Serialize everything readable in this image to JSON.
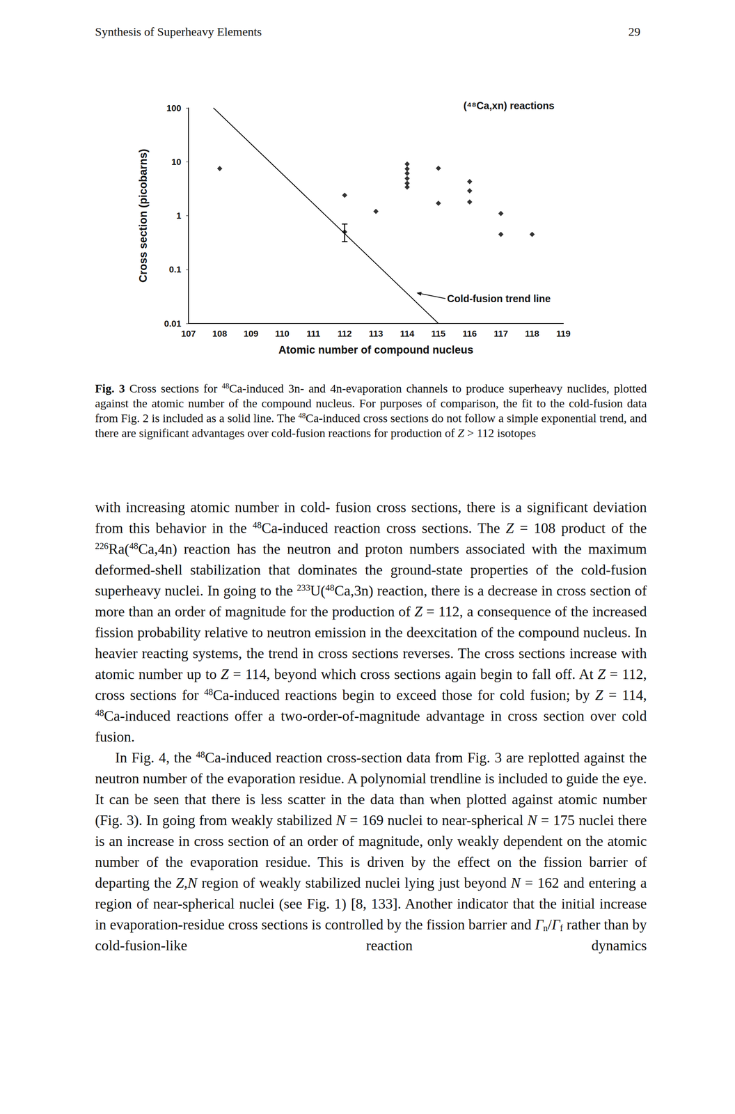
{
  "header": {
    "title": "Synthesis of Superheavy Elements",
    "page": 29
  },
  "chart_data": {
    "type": "scatter",
    "xlabel": "Atomic number of compound nucleus",
    "ylabel": "Cross section (picobarns)",
    "xlim": [
      107,
      119
    ],
    "xticks": [
      107,
      108,
      109,
      110,
      111,
      112,
      113,
      114,
      115,
      116,
      117,
      118,
      119
    ],
    "ylim": [
      0.01,
      100
    ],
    "yticks": [
      0.01,
      0.1,
      1,
      10,
      100
    ],
    "log": "y",
    "grid": false,
    "series": [
      {
        "name": "(⁴⁸Ca,xn) reactions",
        "type": "scatter",
        "marker": "diamond",
        "color": "#000000",
        "x": [
          108,
          112,
          112,
          113,
          114,
          114,
          114,
          114,
          114,
          114,
          115,
          115,
          116,
          116,
          116,
          117,
          117,
          118
        ],
        "values": [
          7.5,
          2.4,
          0.5,
          1.2,
          9.1,
          7.4,
          6.1,
          4.9,
          4.0,
          3.4,
          7.6,
          1.7,
          4.3,
          2.9,
          1.8,
          1.1,
          0.45,
          0.45
        ],
        "error_bars": [
          null,
          null,
          [
            0.33,
            0.7
          ],
          null,
          null,
          null,
          null,
          null,
          null,
          null,
          null,
          null,
          null,
          null,
          null,
          null,
          null,
          null
        ]
      },
      {
        "name": "Cold-fusion trend line",
        "type": "line",
        "color": "#000000",
        "line_style": "solid",
        "x": [
          107.8,
          115
        ],
        "values": [
          100,
          0.01
        ]
      }
    ]
  },
  "caption": [
    {
      "b": "Fig. 3"
    },
    " Cross sections for ",
    {
      "sup": "48"
    },
    "Ca-induced 3n- and 4n-evaporation channels to produce superheavy nuclides, plotted against the atomic number of the compound nucleus. For purposes of comparison, the fit to the cold-fusion data from Fig. 2 is included as a solid line. The ",
    {
      "sup": "48"
    },
    "Ca-induced cross sections do not follow a simple exponential trend, and there are significant advantages over cold-fusion reactions for production of ",
    {
      "i": "Z"
    },
    " > 112 isotopes"
  ],
  "paragraphs": [
    [
      "with increasing atomic number in cold- fusion cross sections, there is a significant deviation from this behavior in the ",
      {
        "sup": "48"
      },
      "Ca-induced reaction cross sections. The ",
      {
        "i": "Z"
      },
      " = 108 product of the ",
      {
        "sup": "226"
      },
      "Ra(",
      {
        "sup": "48"
      },
      "Ca,4n) reaction has the neutron and proton numbers associated with the maximum deformed-shell stabilization that dominates the ground-state properties of the cold-fusion superheavy nuclei. In going to the ",
      {
        "sup": "233"
      },
      "U(",
      {
        "sup": "48"
      },
      "Ca,3n) reaction, there is a decrease in cross section of more than an order of magnitude for the production of ",
      {
        "i": "Z"
      },
      " = 112, a consequence of the increased fission probability relative to neutron emission in the deexcitation of the compound nucleus. In heavier reacting systems, the trend in cross sections reverses. The cross sections increase with atomic number up to ",
      {
        "i": "Z"
      },
      " = 114, beyond which cross sections again begin to fall off. At ",
      {
        "i": "Z"
      },
      " = 112, cross sections for ",
      {
        "sup": "48"
      },
      "Ca-induced reactions begin to exceed those for cold fusion; by ",
      {
        "i": "Z"
      },
      " = 114, ",
      {
        "sup": "48"
      },
      "Ca-induced reactions offer a two-order-of-magnitude advantage in cross section over cold fusion."
    ],
    [
      "In Fig. 4, the ",
      {
        "sup": "48"
      },
      "Ca-induced reaction cross-section data from Fig. 3 are replotted against the neutron number of the evaporation residue. A polynomial trendline is included to guide the eye. It can be seen that there is less scatter in the data than when plotted against atomic number (Fig. 3). In going from weakly stabilized ",
      {
        "i": "N"
      },
      " = 169 nuclei to near-spherical ",
      {
        "i": "N"
      },
      " = 175 nuclei there is an increase in cross section of an order of magnitude, only weakly dependent on the atomic number of the evaporation residue. This is driven by the effect on the fission barrier of departing the ",
      {
        "i": "Z,N"
      },
      " region of weakly stabilized nuclei lying just beyond ",
      {
        "i": "N"
      },
      " = 162 and entering a region of near-spherical nuclei (see Fig. 1) [8, 133]. Another indicator that the initial increase in evaporation-residue cross sections is controlled by the fission barrier and ",
      {
        "i": "Γ"
      },
      {
        "sub": "n"
      },
      "/",
      {
        "i": "Γ"
      },
      {
        "sub": "f"
      },
      " rather than by cold-fusion-like reaction dynamics"
    ]
  ]
}
